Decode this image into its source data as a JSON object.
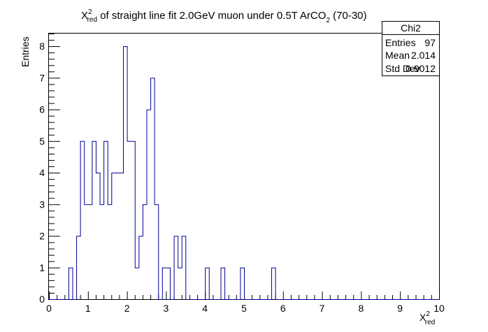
{
  "chart_data": {
    "type": "histogram",
    "title": {
      "main": "X",
      "sup": "2",
      "sub": "red",
      "rest": " of straight line fit 2.0GeV muon under 0.5T ArCO",
      "sub2": "2",
      "tail": " (70-30)"
    },
    "xlabel": {
      "main": "X",
      "sup": "2",
      "sub": "red"
    },
    "ylabel": "Entries",
    "xlim": [
      0,
      10
    ],
    "ylim": [
      0,
      8.4
    ],
    "bin_width": 0.1,
    "x_ticks": [
      "0",
      "1",
      "2",
      "3",
      "4",
      "5",
      "6",
      "7",
      "8",
      "9",
      "10"
    ],
    "y_ticks": [
      "0",
      "1",
      "2",
      "3",
      "4",
      "5",
      "6",
      "7",
      "8"
    ],
    "bins": [
      {
        "x": 0.5,
        "value": 1
      },
      {
        "x": 0.7,
        "value": 2
      },
      {
        "x": 0.8,
        "value": 5
      },
      {
        "x": 0.9,
        "value": 3
      },
      {
        "x": 1.0,
        "value": 3
      },
      {
        "x": 1.1,
        "value": 5
      },
      {
        "x": 1.2,
        "value": 4
      },
      {
        "x": 1.3,
        "value": 3
      },
      {
        "x": 1.4,
        "value": 5
      },
      {
        "x": 1.5,
        "value": 3
      },
      {
        "x": 1.6,
        "value": 4
      },
      {
        "x": 1.7,
        "value": 4
      },
      {
        "x": 1.8,
        "value": 4
      },
      {
        "x": 1.9,
        "value": 8
      },
      {
        "x": 2.0,
        "value": 5
      },
      {
        "x": 2.1,
        "value": 5
      },
      {
        "x": 2.2,
        "value": 1
      },
      {
        "x": 2.3,
        "value": 2
      },
      {
        "x": 2.4,
        "value": 3
      },
      {
        "x": 2.5,
        "value": 6
      },
      {
        "x": 2.6,
        "value": 7
      },
      {
        "x": 2.7,
        "value": 3
      },
      {
        "x": 2.9,
        "value": 1
      },
      {
        "x": 3.0,
        "value": 1
      },
      {
        "x": 3.2,
        "value": 2
      },
      {
        "x": 3.3,
        "value": 1
      },
      {
        "x": 3.4,
        "value": 2
      },
      {
        "x": 4.0,
        "value": 1
      },
      {
        "x": 4.4,
        "value": 1
      },
      {
        "x": 4.9,
        "value": 1
      },
      {
        "x": 5.7,
        "value": 1
      }
    ],
    "line_color": "#000099",
    "stats": {
      "name": "Chi2",
      "rows": [
        {
          "label": "Entries",
          "value": "97"
        },
        {
          "label": "Mean",
          "value": "2.014"
        },
        {
          "label": "Std Dev",
          "value": "0.9012"
        }
      ]
    }
  }
}
